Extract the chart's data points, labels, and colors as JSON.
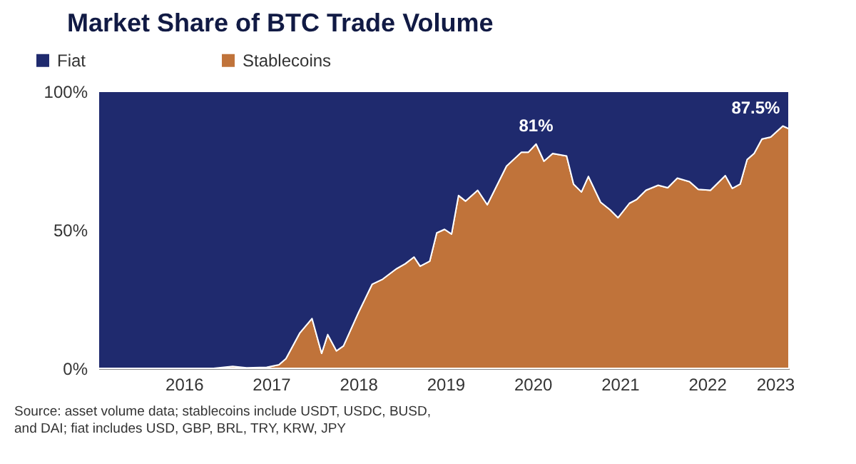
{
  "chart_data": {
    "type": "area",
    "title": "Market Share of BTC Trade Volume",
    "stacked": true,
    "legend": "top left",
    "xlim": [
      2015.02,
      2022.94
    ],
    "xticks": [
      2016,
      2017,
      2018,
      2019,
      2020,
      2021,
      2022,
      {
        "value": 2022.78,
        "label": "2023"
      }
    ],
    "ylim": [
      0,
      100
    ],
    "yticks": [
      {
        "value": 0,
        "label": "0%"
      },
      {
        "value": 50,
        "label": "50%"
      },
      {
        "value": 100,
        "label": "100%"
      }
    ],
    "x": [
      2015.02,
      2016.34,
      2016.56,
      2016.72,
      2016.95,
      2017.09,
      2017.17,
      2017.33,
      2017.47,
      2017.58,
      2017.65,
      2017.75,
      2017.83,
      2018.0,
      2018.16,
      2018.28,
      2018.44,
      2018.54,
      2018.64,
      2018.71,
      2018.82,
      2018.9,
      2018.99,
      2019.07,
      2019.15,
      2019.23,
      2019.37,
      2019.48,
      2019.7,
      2019.87,
      2019.95,
      2020.04,
      2020.13,
      2020.23,
      2020.39,
      2020.47,
      2020.56,
      2020.64,
      2020.78,
      2020.89,
      2020.98,
      2021.11,
      2021.19,
      2021.3,
      2021.44,
      2021.55,
      2021.66,
      2021.8,
      2021.9,
      2022.04,
      2022.21,
      2022.29,
      2022.38,
      2022.46,
      2022.54,
      2022.63,
      2022.73,
      2022.87,
      2022.94
    ],
    "series": [
      {
        "name": "Stablecoins",
        "color": "#c0733a",
        "values": [
          0,
          0,
          0.7,
          0.2,
          0.4,
          1.3,
          3.5,
          12.8,
          18,
          5.4,
          12.2,
          6.3,
          8.1,
          20,
          30.4,
          32.2,
          36,
          37.8,
          40.2,
          36.9,
          38.7,
          48.9,
          50.2,
          48.5,
          62.4,
          60.4,
          64.3,
          59.1,
          73,
          78,
          78,
          81,
          74.8,
          77.6,
          76.7,
          66.5,
          63.7,
          69.3,
          60,
          57.2,
          54.4,
          59.6,
          60.9,
          64.3,
          66.1,
          65.2,
          68.7,
          67.4,
          64.6,
          64.3,
          69.6,
          65,
          66.5,
          75.4,
          77.6,
          82.8,
          83.5,
          87.5,
          86.5
        ]
      },
      {
        "name": "Fiat",
        "color": "#1f2a6e",
        "values": [
          100,
          100,
          99.3,
          99.8,
          99.6,
          98.7,
          96.5,
          87.2,
          82,
          94.6,
          87.8,
          93.7,
          91.9,
          80,
          69.6,
          67.8,
          64,
          62.2,
          59.8,
          63.1,
          61.3,
          51.1,
          49.8,
          51.5,
          37.6,
          39.6,
          35.7,
          40.9,
          27,
          22,
          22,
          19,
          25.2,
          22.4,
          23.3,
          33.5,
          36.3,
          30.7,
          40,
          42.8,
          45.6,
          40.4,
          39.1,
          35.7,
          33.9,
          34.8,
          31.3,
          32.6,
          35.4,
          35.7,
          30.4,
          35,
          33.5,
          24.6,
          22.4,
          17.2,
          16.5,
          12.5,
          13.5
        ]
      }
    ],
    "annotations": [
      {
        "text": "81%",
        "x": 2020.04,
        "y": 81
      },
      {
        "text": "87.5%",
        "x": 2022.87,
        "y": 87.5
      },
      "Source: asset volume data; stablecoins include USDT, USDC, BUSD, and DAI; fiat includes USD, GBP, BRL, TRY, KRW, JPY"
    ]
  }
}
